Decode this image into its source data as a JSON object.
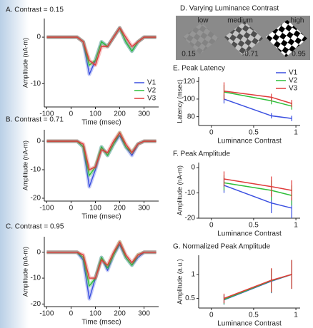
{
  "chart_data": [
    {
      "type": "line",
      "title": "A. Contrast = 0.15",
      "xlabel": "Time (msec)",
      "ylabel": "Amplitude (nA-m)",
      "x": [
        -100,
        -75,
        -50,
        -25,
        0,
        25,
        50,
        75,
        100,
        125,
        150,
        175,
        200,
        225,
        250,
        275,
        300,
        325,
        350
      ],
      "series": [
        {
          "name": "V1",
          "color": "#3a4fe0",
          "values": [
            0,
            0,
            0,
            0,
            0,
            0,
            -1,
            -8,
            -5,
            -1,
            -2,
            0,
            2,
            -1,
            -3,
            -1,
            0,
            0,
            0
          ]
        },
        {
          "name": "V2",
          "color": "#2fbf3a",
          "values": [
            0,
            0,
            0,
            0,
            0,
            0,
            -1,
            -6,
            -5,
            -1,
            -2,
            0,
            2,
            -1,
            -3,
            -1,
            0,
            0,
            0
          ]
        },
        {
          "name": "V3",
          "color": "#e03a3a",
          "values": [
            0,
            0,
            0,
            0,
            0,
            0,
            -1,
            -5,
            -6,
            -2,
            -2,
            0,
            2,
            0,
            -2,
            -1,
            0,
            0,
            0
          ]
        }
      ],
      "xlim": [
        -110,
        360
      ],
      "xticks": [
        -100,
        0,
        100,
        200,
        300
      ],
      "ylim": [
        -15,
        4
      ],
      "yticks": [
        0,
        -10
      ],
      "legend": "lower right"
    },
    {
      "type": "line",
      "title": "B. Contrast = 0.71",
      "xlabel": "Time (msec)",
      "ylabel": "Amplitude (nA-m)",
      "x": [
        -100,
        -75,
        -50,
        -25,
        0,
        25,
        50,
        75,
        100,
        125,
        150,
        175,
        200,
        225,
        250,
        275,
        300,
        325,
        350
      ],
      "series": [
        {
          "color": "#3a4fe0",
          "values": [
            0,
            0,
            0,
            0,
            0,
            0,
            -2,
            -16,
            -10,
            -2,
            -5,
            -1,
            2,
            -2,
            -5,
            -1,
            0,
            0,
            0
          ]
        },
        {
          "color": "#2fbf3a",
          "values": [
            0,
            0,
            0,
            0,
            0,
            0,
            -2,
            -12,
            -9,
            -2,
            -5,
            -1,
            3,
            -2,
            -4,
            -1,
            0,
            0,
            0
          ]
        },
        {
          "color": "#e03a3a",
          "values": [
            0,
            0,
            0,
            0,
            0,
            0,
            -1,
            -10,
            -9,
            -3,
            -4,
            0,
            3,
            -1,
            -4,
            -1,
            0,
            0,
            0
          ]
        }
      ],
      "xlim": [
        -110,
        360
      ],
      "xticks": [
        -100,
        0,
        100,
        200,
        300
      ],
      "ylim": [
        -21,
        4
      ],
      "yticks": [
        0,
        -10,
        -20
      ]
    },
    {
      "type": "line",
      "title": "C. Contrast = 0.95",
      "xlabel": "Time (msec)",
      "ylabel": "Amplitude (nA-m)",
      "x": [
        -100,
        -75,
        -50,
        -25,
        0,
        25,
        50,
        75,
        100,
        125,
        150,
        175,
        200,
        225,
        250,
        275,
        300,
        325,
        350
      ],
      "series": [
        {
          "color": "#3a4fe0",
          "values": [
            0,
            0,
            0,
            0,
            0,
            0,
            -3,
            -18,
            -10,
            -2,
            -7,
            -1,
            3,
            -2,
            -5,
            -2,
            0,
            0,
            0
          ]
        },
        {
          "color": "#2fbf3a",
          "values": [
            0,
            0,
            0,
            0,
            0,
            0,
            -2,
            -13,
            -10,
            -2,
            -6,
            -1,
            4,
            -2,
            -5,
            -1,
            0,
            0,
            0
          ]
        },
        {
          "color": "#e03a3a",
          "values": [
            0,
            0,
            0,
            0,
            0,
            0,
            -1,
            -10,
            -10,
            -3,
            -5,
            0,
            4,
            -1,
            -4,
            -1,
            0,
            0,
            0
          ]
        }
      ],
      "xlim": [
        -110,
        360
      ],
      "xticks": [
        -100,
        0,
        100,
        200,
        300
      ],
      "ylim": [
        -21,
        6
      ],
      "yticks": [
        0,
        -10,
        -20
      ]
    },
    {
      "type": "errorline",
      "title": "E. Peak Latency",
      "xlabel": "Luminance Contrast",
      "ylabel": "Latency (msec)",
      "x": [
        0.15,
        0.71,
        0.95
      ],
      "series": [
        {
          "name": "V1",
          "color": "#3a4fe0",
          "values": [
            100,
            81,
            78
          ],
          "errors": [
            5,
            3,
            3
          ]
        },
        {
          "name": "V2",
          "color": "#2fbf3a",
          "values": [
            108,
            98,
            92
          ],
          "errors": [
            8,
            4,
            4
          ]
        },
        {
          "name": "V3",
          "color": "#e03a3a",
          "values": [
            109,
            102,
            95
          ],
          "errors": [
            10,
            4,
            4
          ]
        }
      ],
      "xlim": [
        -0.15,
        1.05
      ],
      "xticks": [
        0,
        0.5,
        1
      ],
      "ylim": [
        70,
        125
      ],
      "yticks": [
        80,
        100,
        120
      ],
      "legend": "upper right"
    },
    {
      "type": "errorline",
      "title": "F. Peak Amplitude",
      "xlabel": "Luminance Contrast",
      "ylabel": "Amplitude (nA-m)",
      "x": [
        0.15,
        0.71,
        0.95
      ],
      "series": [
        {
          "color": "#3a4fe0",
          "values": [
            -7,
            -14,
            -16
          ],
          "errors": [
            3,
            4,
            4
          ]
        },
        {
          "color": "#2fbf3a",
          "values": [
            -6,
            -9,
            -11
          ],
          "errors": [
            3,
            4,
            4
          ]
        },
        {
          "color": "#e03a3a",
          "values": [
            -4.5,
            -7.5,
            -9
          ],
          "errors": [
            3,
            4,
            4
          ]
        }
      ],
      "xlim": [
        -0.15,
        1.05
      ],
      "xticks": [
        0,
        0.5,
        1
      ],
      "ylim": [
        -20,
        2
      ],
      "yticks": [
        0,
        -10,
        -20
      ]
    },
    {
      "type": "errorline",
      "title": "G. Normalized Peak Amplitude",
      "xlabel": "Luminance Contrast",
      "ylabel": "Amplitude (a.u.)",
      "x": [
        0.15,
        0.71,
        0.95
      ],
      "series": [
        {
          "color": "#3a4fe0",
          "values": [
            0.47,
            0.86,
            1.0
          ],
          "errors": [
            0.1,
            0.25,
            0.3
          ]
        },
        {
          "color": "#2fbf3a",
          "values": [
            0.48,
            0.87,
            1.0
          ],
          "errors": [
            0.1,
            0.25,
            0.3
          ]
        },
        {
          "color": "#e03a3a",
          "values": [
            0.5,
            0.88,
            1.0
          ],
          "errors": [
            0.1,
            0.25,
            0.3
          ]
        }
      ],
      "xlim": [
        -0.15,
        1.05
      ],
      "xticks": [
        0,
        0.5,
        1
      ],
      "ylim": [
        0.3,
        1.4
      ],
      "yticks": [
        0.5,
        1
      ]
    }
  ],
  "image_panel": {
    "title": "D. Varying Luminance Contrast",
    "labels": [
      "low",
      "medium",
      "high"
    ],
    "contrasts": [
      0.15,
      0.71,
      0.95
    ]
  }
}
